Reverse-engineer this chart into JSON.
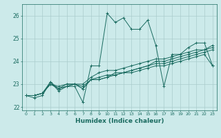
{
  "xlabel": "Humidex (Indice chaleur)",
  "ylabel": "",
  "bg_color": "#cceaea",
  "grid_color": "#aacccc",
  "line_color": "#1a6b60",
  "xlim": [
    -0.5,
    23.5
  ],
  "ylim": [
    21.85,
    26.5
  ],
  "yticks": [
    22,
    23,
    24,
    25,
    26
  ],
  "xticks": [
    0,
    1,
    2,
    3,
    4,
    5,
    6,
    7,
    8,
    9,
    10,
    11,
    12,
    13,
    14,
    15,
    16,
    17,
    18,
    19,
    20,
    21,
    22,
    23
  ],
  "series": [
    [
      22.5,
      22.4,
      22.5,
      23.1,
      22.7,
      22.9,
      22.9,
      22.2,
      23.8,
      23.8,
      26.1,
      25.7,
      25.9,
      25.4,
      25.4,
      25.8,
      24.7,
      22.9,
      24.3,
      24.3,
      24.6,
      24.8,
      24.8,
      23.8
    ],
    [
      22.5,
      22.5,
      22.6,
      23.0,
      22.8,
      22.9,
      23.0,
      22.8,
      23.2,
      23.2,
      23.3,
      23.4,
      23.5,
      23.6,
      23.7,
      23.8,
      23.9,
      23.9,
      24.0,
      24.1,
      24.2,
      24.3,
      24.4,
      24.5
    ],
    [
      22.5,
      22.5,
      22.6,
      23.0,
      22.8,
      22.9,
      23.0,
      22.8,
      23.2,
      23.2,
      23.3,
      23.5,
      23.5,
      23.6,
      23.7,
      23.8,
      24.0,
      24.0,
      24.1,
      24.2,
      24.3,
      24.4,
      24.5,
      24.6
    ],
    [
      22.5,
      22.5,
      22.6,
      23.1,
      22.8,
      23.0,
      23.0,
      23.0,
      23.3,
      23.5,
      23.6,
      23.6,
      23.7,
      23.8,
      23.9,
      24.0,
      24.1,
      24.1,
      24.2,
      24.3,
      24.4,
      24.5,
      24.5,
      24.7
    ],
    [
      22.5,
      22.5,
      22.6,
      23.0,
      22.9,
      23.0,
      23.0,
      22.9,
      23.2,
      23.3,
      23.4,
      23.4,
      23.5,
      23.5,
      23.6,
      23.7,
      23.8,
      23.8,
      23.9,
      24.0,
      24.1,
      24.2,
      24.3,
      23.8
    ]
  ]
}
